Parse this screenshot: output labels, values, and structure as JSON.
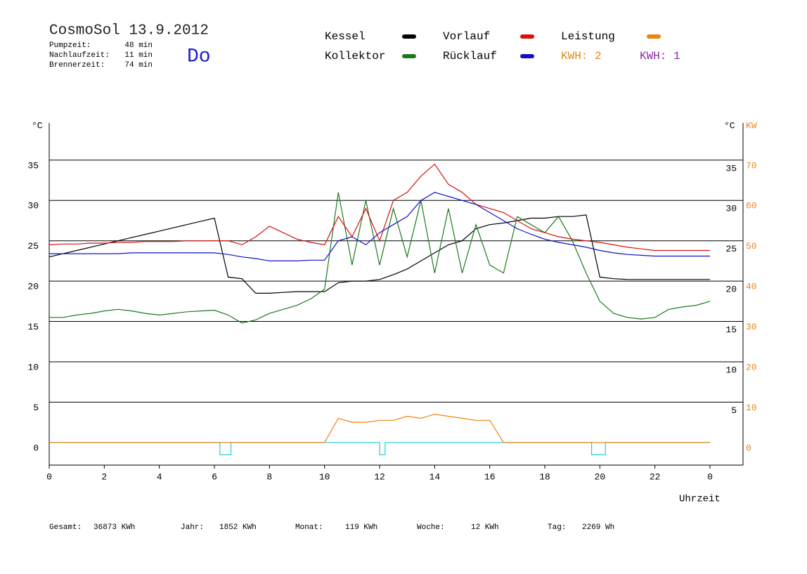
{
  "header": {
    "title": "CosmoSol 13.9.2012",
    "day": "Do",
    "stats": [
      {
        "label": "Pumpzeit:",
        "value": "48 min"
      },
      {
        "label": "Nachlaufzeit:",
        "value": "11 min"
      },
      {
        "label": "Brennerzeit:",
        "value": "74 min"
      }
    ]
  },
  "footer": [
    {
      "label": "Gesamt:",
      "value": "36873 KWh"
    },
    {
      "label": "Jahr:",
      "value": "1852 KWh"
    },
    {
      "label": "Monat:",
      "value": "119 KWh"
    },
    {
      "label": "Woche:",
      "value": "12 KWh"
    },
    {
      "label": "Tag:",
      "value": "2269 Wh"
    }
  ],
  "chart_data": {
    "type": "line",
    "ylabel": "°C",
    "y2label_unit": "°C",
    "y2label": "KW",
    "xlabel": "Uhrzeit",
    "legend_extra": [
      {
        "text": "KWH: 2",
        "color": "#e08a1e"
      },
      {
        "text": "KWH: 1",
        "color": "#8a2d9a"
      }
    ],
    "x": [
      0,
      0.5,
      1,
      1.5,
      2,
      2.5,
      3,
      3.5,
      4,
      4.5,
      5,
      5.5,
      6,
      6.5,
      7,
      7.5,
      8,
      8.5,
      9,
      9.5,
      10,
      10.5,
      11,
      11.5,
      12,
      12.5,
      13,
      13.5,
      14,
      14.5,
      15,
      15.5,
      16,
      16.5,
      17,
      17.5,
      18,
      18.5,
      19,
      19.5,
      20,
      20.5,
      21,
      21.5,
      22,
      22.5,
      23,
      23.5,
      24
    ],
    "xlim": [
      0,
      25.2
    ],
    "xticks": [
      0,
      2,
      4,
      6,
      8,
      10,
      12,
      14,
      16,
      18,
      20,
      22,
      {
        "value": 24,
        "label": "0"
      }
    ],
    "ylim": [
      -2.8,
      39.6
    ],
    "yticks": [
      0,
      5,
      10,
      15,
      20,
      25,
      30,
      35
    ],
    "yticks_right": [
      5,
      10,
      15,
      20,
      25,
      30,
      35
    ],
    "y2lim": [
      -5.6,
      79.2
    ],
    "y2ticks": [
      0,
      10,
      20,
      30,
      40,
      50,
      60,
      70
    ],
    "grid": true,
    "series": [
      {
        "name": "Kessel",
        "color": "#000000",
        "values": [
          23,
          23.4,
          23.8,
          24.2,
          24.6,
          25,
          25.4,
          25.8,
          26.2,
          26.6,
          27,
          27.4,
          27.8,
          20.5,
          20.3,
          18.5,
          18.5,
          18.6,
          18.7,
          18.7,
          18.7,
          19.8,
          20,
          20,
          20.2,
          20.8,
          21.5,
          22.5,
          23.5,
          24.5,
          25,
          26.5,
          27,
          27.2,
          27.5,
          27.8,
          27.8,
          28,
          28,
          28.2,
          20.5,
          20.3,
          20.2,
          20.2,
          20.2,
          20.2,
          20.2,
          20.2,
          20.2
        ]
      },
      {
        "name": "Kollektor",
        "color": "#1a7a1a",
        "values": [
          15.5,
          15.5,
          15.8,
          16,
          16.3,
          16.5,
          16.3,
          16,
          15.8,
          16,
          16.2,
          16.3,
          16.4,
          15.8,
          14.8,
          15.2,
          16,
          16.5,
          17,
          17.8,
          19,
          31,
          22,
          30,
          22,
          29,
          23,
          30,
          21,
          29,
          21,
          27,
          22,
          21,
          28,
          27,
          26,
          28,
          25,
          21,
          17.5,
          16,
          15.5,
          15.3,
          15.5,
          16.5,
          16.8,
          17,
          17.5
        ]
      },
      {
        "name": "Vorlauf",
        "color": "#d81010",
        "values": [
          24.5,
          24.6,
          24.6,
          24.7,
          24.7,
          24.8,
          24.8,
          24.9,
          24.9,
          24.9,
          25,
          25,
          25,
          25,
          24.5,
          25.5,
          26.8,
          26,
          25.2,
          24.8,
          24.5,
          28,
          25.5,
          29,
          25,
          30,
          31,
          33,
          34.5,
          32,
          31,
          29.5,
          29,
          28.5,
          27.5,
          26.5,
          26,
          25.5,
          25.2,
          25,
          24.8,
          24.5,
          24.2,
          24,
          23.8,
          23.8,
          23.8,
          23.8,
          23.8
        ]
      },
      {
        "name": "Rücklauf",
        "color": "#1010c8",
        "values": [
          23.4,
          23.4,
          23.4,
          23.4,
          23.4,
          23.4,
          23.5,
          23.5,
          23.5,
          23.5,
          23.5,
          23.5,
          23.5,
          23.3,
          23,
          22.8,
          22.5,
          22.5,
          22.5,
          22.6,
          22.6,
          25,
          25.5,
          24.5,
          26,
          27,
          28,
          30,
          31,
          30.5,
          30,
          29.5,
          28.5,
          27.5,
          26.5,
          25.8,
          25.2,
          24.8,
          24.5,
          24.2,
          23.8,
          23.5,
          23.3,
          23.2,
          23.1,
          23.1,
          23.1,
          23.1,
          23.1
        ]
      },
      {
        "name": "Leistung",
        "color": "#f08010",
        "axis": "y2",
        "values": [
          0,
          0,
          0,
          0,
          0,
          0,
          0,
          0,
          0,
          0,
          0,
          0,
          0,
          0,
          0,
          0,
          0,
          0,
          0,
          0,
          0,
          6,
          5,
          5,
          5.5,
          5.5,
          6.5,
          6,
          7,
          6.5,
          6,
          5.5,
          5.5,
          0,
          0,
          0,
          0,
          0,
          0,
          0,
          0,
          0,
          0,
          0,
          0,
          0,
          0,
          0,
          0
        ]
      },
      {
        "color": "#20d0d0",
        "x": [
          0,
          6.2,
          6.2,
          6.6,
          6.6,
          12,
          12,
          12.2,
          12.2,
          19.7,
          19.7,
          20.2,
          20.2,
          24
        ],
        "values": [
          0,
          0,
          -1.5,
          -1.5,
          0,
          0,
          -1.5,
          -1.5,
          0,
          0,
          -1.5,
          -1.5,
          0,
          0
        ]
      }
    ]
  }
}
